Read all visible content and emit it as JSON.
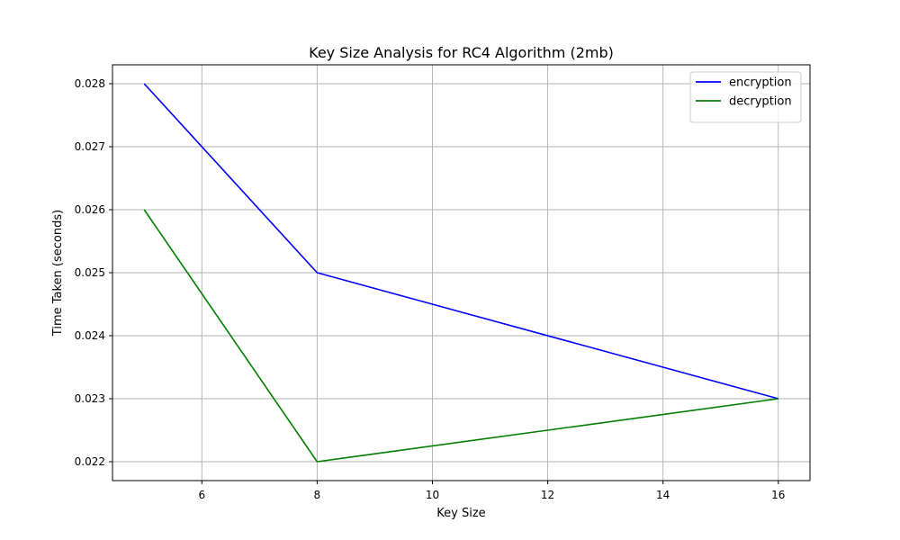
{
  "chart_data": {
    "type": "line",
    "title": "Key Size Analysis for RC4 Algorithm (2mb)",
    "xlabel": "Key Size",
    "ylabel": "Time Taken (seconds)",
    "x": [
      5,
      8,
      16
    ],
    "series": [
      {
        "name": "encryption",
        "values": [
          0.028,
          0.025,
          0.023
        ],
        "color": "#0000ff"
      },
      {
        "name": "decryption",
        "values": [
          0.026,
          0.022,
          0.023
        ],
        "color": "#008000"
      }
    ],
    "xlim": [
      4.45,
      16.55
    ],
    "ylim": [
      0.0217,
      0.0283
    ],
    "xticks": [
      6,
      8,
      10,
      12,
      14,
      16
    ],
    "yticks": [
      0.022,
      0.023,
      0.024,
      0.025,
      0.026,
      0.027,
      0.028
    ],
    "xtick_labels": [
      "6",
      "8",
      "10",
      "12",
      "14",
      "16"
    ],
    "ytick_labels": [
      "0.022",
      "0.023",
      "0.024",
      "0.025",
      "0.026",
      "0.027",
      "0.028"
    ],
    "grid": true,
    "legend": "top-right"
  }
}
